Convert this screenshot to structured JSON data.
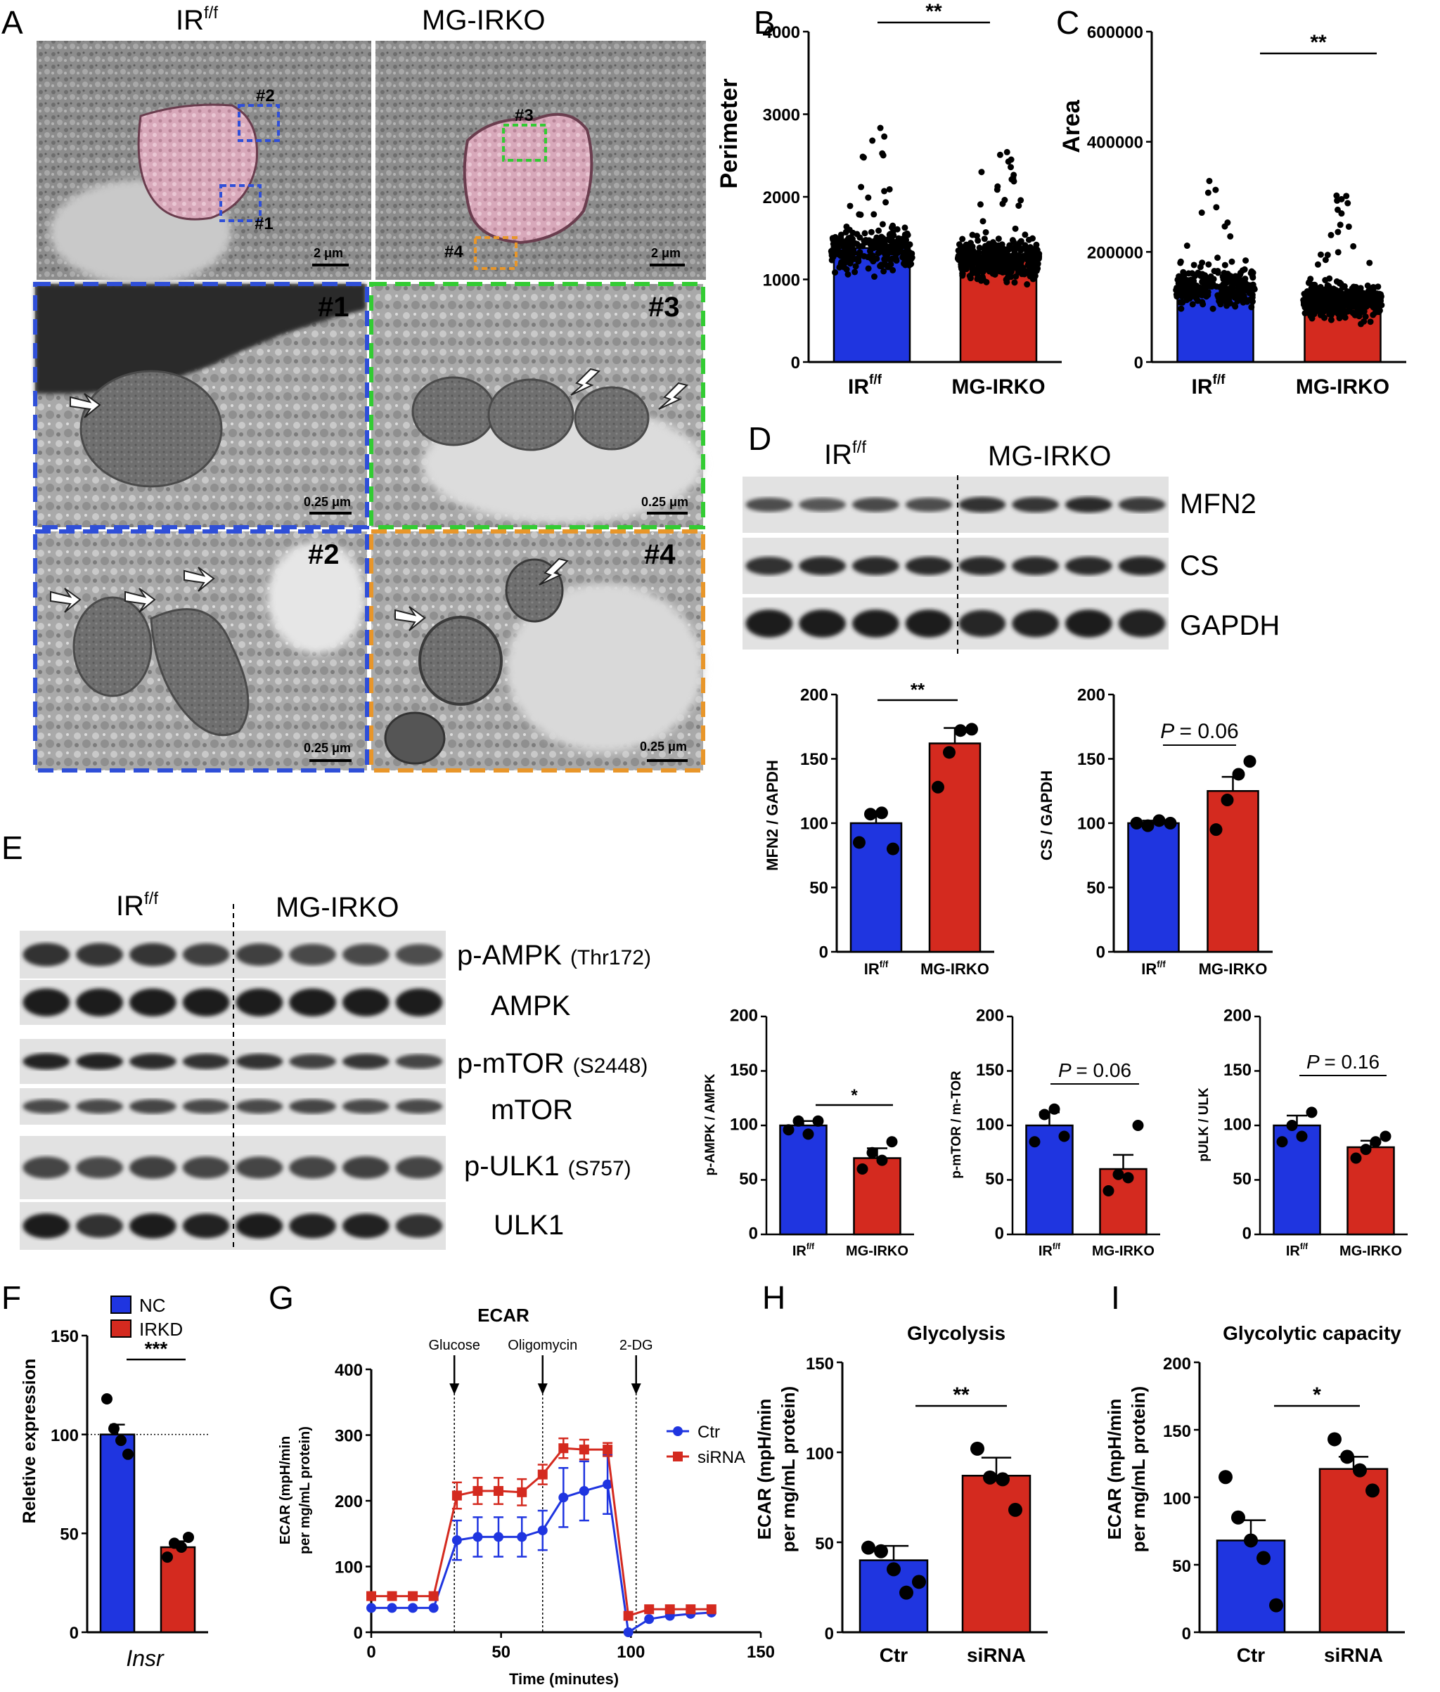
{
  "colors": {
    "blue": "#1f35e0",
    "red": "#d42a1f",
    "gray_em": "#8a8a8a",
    "pink": "#d9a5b8",
    "c1": "#2f4fd8",
    "c2": "#2f4fd8",
    "c3": "#33cc33",
    "c4": "#e8962a"
  },
  "panelA": {
    "letter": "A",
    "group1": "IR",
    "group1_sup": "f/f",
    "group2": "MG-IRKO",
    "scale_overview": "2 μm",
    "scale_overview2": "2 μm",
    "scale_zoom": "0.25 μm",
    "boxes": [
      "#1",
      "#2",
      "#3",
      "#4"
    ]
  },
  "panelB": {
    "letter": "B",
    "ylabel": "Perimeter",
    "sig": "**",
    "chart_data": {
      "type": "bar",
      "categories": [
        "IR f/f",
        "MG-IRKO"
      ],
      "values": [
        1380,
        1250
      ],
      "ylim": [
        0,
        4000
      ],
      "yticks": [
        0,
        1000,
        2000,
        3000,
        4000
      ],
      "ylabel": "Perimeter"
    }
  },
  "panelC": {
    "letter": "C",
    "ylabel": "Area",
    "sig": "**",
    "chart_data": {
      "type": "bar",
      "categories": [
        "IR f/f",
        "MG-IRKO"
      ],
      "values": [
        135000,
        112000
      ],
      "ylim": [
        0,
        600000
      ],
      "yticks": [
        0,
        200000,
        400000,
        600000
      ],
      "ylabel": "Area"
    }
  },
  "panelD": {
    "letter": "D",
    "group1": "IR",
    "group1_sup": "f/f",
    "group2": "MG-IRKO",
    "bands": [
      "MFN2",
      "CS",
      "GAPDH"
    ],
    "mfn2_chart": {
      "ylabel": "MFN2 / GAPDH",
      "sig": "**",
      "chart_data": {
        "type": "bar",
        "categories": [
          "IR f/f",
          "MG-IRKO"
        ],
        "values": [
          100,
          162
        ],
        "errors": [
          9,
          12
        ],
        "points": [
          [
            85,
            107,
            108,
            80
          ],
          [
            128,
            155,
            172,
            173
          ]
        ],
        "ylim": [
          0,
          200
        ],
        "yticks": [
          0,
          50,
          100,
          150,
          200
        ]
      }
    },
    "cs_chart": {
      "ylabel": "CS / GAPDH",
      "pval": "= 0.06",
      "p": "P",
      "chart_data": {
        "type": "bar",
        "categories": [
          "IR f/f",
          "MG-IRKO"
        ],
        "values": [
          100,
          125
        ],
        "errors": [
          2,
          11
        ],
        "points": [
          [
            100,
            98,
            102,
            100
          ],
          [
            95,
            118,
            138,
            148
          ]
        ],
        "ylim": [
          0,
          200
        ],
        "yticks": [
          0,
          50,
          100,
          150,
          200
        ]
      }
    }
  },
  "panelE": {
    "letter": "E",
    "group1": "IR",
    "group1_sup": "f/f",
    "group2": "MG-IRKO",
    "bands": [
      {
        "name": "p-AMPK",
        "site": "(Thr172)"
      },
      {
        "name": "AMPK",
        "site": ""
      },
      {
        "name": "p-mTOR",
        "site": "(S2448)"
      },
      {
        "name": "mTOR",
        "site": ""
      },
      {
        "name": "p-ULK1",
        "site": "(S757)"
      },
      {
        "name": "ULK1",
        "site": ""
      }
    ],
    "ampk_chart": {
      "ylabel": "p-AMPK / AMPK",
      "sig": "*",
      "chart_data": {
        "type": "bar",
        "categories": [
          "IR f/f",
          "MG-IRKO"
        ],
        "values": [
          100,
          70
        ],
        "errors": [
          4,
          9
        ],
        "points": [
          [
            96,
            104,
            92,
            104
          ],
          [
            60,
            75,
            68,
            85
          ]
        ],
        "ylim": [
          0,
          200
        ],
        "yticks": [
          0,
          50,
          100,
          150,
          200
        ]
      }
    },
    "mtor_chart": {
      "ylabel": "p-mTOR / m-TOR",
      "p": "P",
      "pval": "= 0.06",
      "chart_data": {
        "type": "bar",
        "categories": [
          "IR f/f",
          "MG-IRKO"
        ],
        "values": [
          100,
          60
        ],
        "errors": [
          12,
          13
        ],
        "points": [
          [
            85,
            110,
            115,
            90
          ],
          [
            40,
            55,
            52,
            100
          ]
        ],
        "ylim": [
          0,
          200
        ],
        "yticks": [
          0,
          50,
          100,
          150,
          200
        ]
      }
    },
    "ulk_chart": {
      "ylabel": "pULK / ULK",
      "p": "P",
      "pval": "= 0.16",
      "chart_data": {
        "type": "bar",
        "categories": [
          "IR f/f",
          "MG-IRKO"
        ],
        "values": [
          100,
          80
        ],
        "errors": [
          9,
          6
        ],
        "points": [
          [
            85,
            100,
            90,
            112
          ],
          [
            70,
            78,
            85,
            90
          ]
        ],
        "ylim": [
          0,
          200
        ],
        "yticks": [
          0,
          50,
          100,
          150,
          200
        ]
      }
    }
  },
  "panelF": {
    "letter": "F",
    "ylabel": "Reletive expression",
    "sig": "***",
    "xlabel": "Insr",
    "legend": [
      "NC",
      "IRKD"
    ],
    "chart_data": {
      "type": "bar",
      "categories": [
        "NC",
        "IRKD"
      ],
      "values": [
        100,
        43
      ],
      "errors": [
        5,
        3
      ],
      "points": [
        [
          118,
          103,
          97,
          90
        ],
        [
          38,
          45,
          43,
          48
        ]
      ],
      "ylim": [
        0,
        150
      ],
      "yticks": [
        0,
        50,
        100,
        150
      ],
      "refline": 100
    }
  },
  "panelG": {
    "letter": "G",
    "title": "ECAR",
    "ylabel": "ECAR (mpH/min",
    "ylabel2": "per mg/mL protein)",
    "xlabel": "Time (minutes)",
    "markers": [
      "Glucose",
      "Oligomycin",
      "2-DG"
    ],
    "legend": [
      "Ctr",
      "siRNA"
    ],
    "chart_data": {
      "type": "line",
      "x": [
        0,
        8,
        16,
        24,
        33,
        41,
        49,
        58,
        66,
        74,
        82,
        91,
        99,
        107,
        115,
        123,
        131
      ],
      "series": [
        {
          "name": "Ctr",
          "values": [
            37,
            37,
            37,
            37,
            140,
            145,
            145,
            145,
            155,
            205,
            215,
            225,
            0,
            20,
            25,
            28,
            30
          ],
          "errors": [
            0,
            0,
            0,
            0,
            30,
            30,
            30,
            30,
            30,
            45,
            45,
            45,
            0,
            0,
            0,
            0,
            0
          ]
        },
        {
          "name": "siRNA",
          "values": [
            55,
            55,
            55,
            55,
            208,
            215,
            215,
            213,
            240,
            280,
            278,
            278,
            25,
            35,
            35,
            35,
            35
          ],
          "errors": [
            0,
            0,
            0,
            0,
            20,
            20,
            20,
            20,
            15,
            15,
            15,
            10,
            0,
            0,
            0,
            0,
            0
          ]
        }
      ],
      "marker_x": [
        32,
        66,
        102
      ],
      "xlim": [
        0,
        150
      ],
      "ylim": [
        0,
        400
      ],
      "xticks": [
        0,
        50,
        100,
        150
      ],
      "yticks": [
        0,
        100,
        200,
        300,
        400
      ]
    }
  },
  "panelH": {
    "letter": "H",
    "title": "Glycolysis",
    "ylabel": "ECAR (mpH/min",
    "ylabel2": "per mg/mL protein)",
    "sig": "**",
    "chart_data": {
      "type": "bar",
      "categories": [
        "Ctr",
        "siRNA"
      ],
      "values": [
        40,
        87
      ],
      "errors": [
        8,
        10
      ],
      "points": [
        [
          47,
          45,
          35,
          22,
          28
        ],
        [
          102,
          86,
          85,
          68
        ]
      ],
      "ylim": [
        0,
        150
      ],
      "yticks": [
        0,
        50,
        100,
        150
      ]
    }
  },
  "panelI": {
    "letter": "I",
    "title": "Glycolytic capacity",
    "ylabel": "ECAR (mpH/min",
    "ylabel2": "per mg/mL protein)",
    "sig": "*",
    "chart_data": {
      "type": "bar",
      "categories": [
        "Ctr",
        "siRNA"
      ],
      "values": [
        68,
        121
      ],
      "errors": [
        15,
        9
      ],
      "points": [
        [
          115,
          85,
          68,
          55,
          20
        ],
        [
          143,
          130,
          120,
          105
        ]
      ],
      "ylim": [
        0,
        200
      ],
      "yticks": [
        0,
        50,
        100,
        150,
        200
      ]
    }
  }
}
